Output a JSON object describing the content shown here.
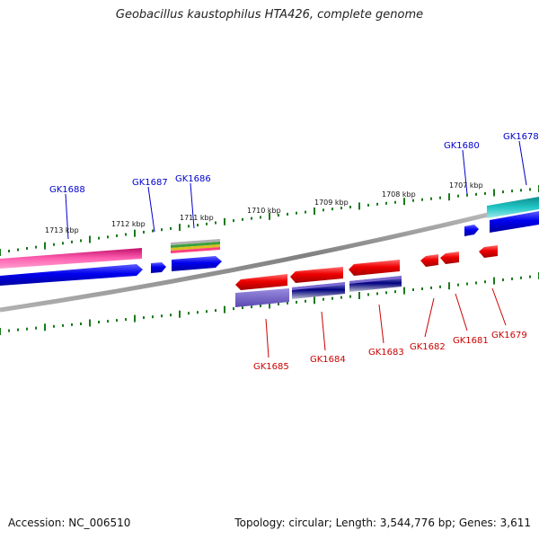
{
  "title": "Geobacillus kaustophilus HTA426, complete genome",
  "footer": {
    "accession_label": "Accession: NC_006510",
    "summary": "Topology: circular; Length: 3,544,776 bp; Genes: 3,611"
  },
  "colors": {
    "backbone": "#808080",
    "tick": "#1a7a1a",
    "top_label": "#0000cc",
    "bottom_label": "#cc0000",
    "gene_blue": "#0000ee",
    "gene_red": "#ee0000",
    "pink": "#ff3fa0",
    "cyan": "#22c6c6",
    "purple": "#7060c0",
    "navy": "#000080"
  },
  "scale_labels": [
    "1713 kbp",
    "1712 kbp",
    "1711 kbp",
    "1710 kbp",
    "1709 kbp",
    "1708 kbp",
    "1707 kbp"
  ],
  "top_genes": [
    "GK1688",
    "GK1687",
    "GK1686",
    "GK1680",
    "GK1678"
  ],
  "bottom_genes": [
    "GK1685",
    "GK1684",
    "GK1683",
    "GK1682",
    "GK1681",
    "GK1679"
  ]
}
